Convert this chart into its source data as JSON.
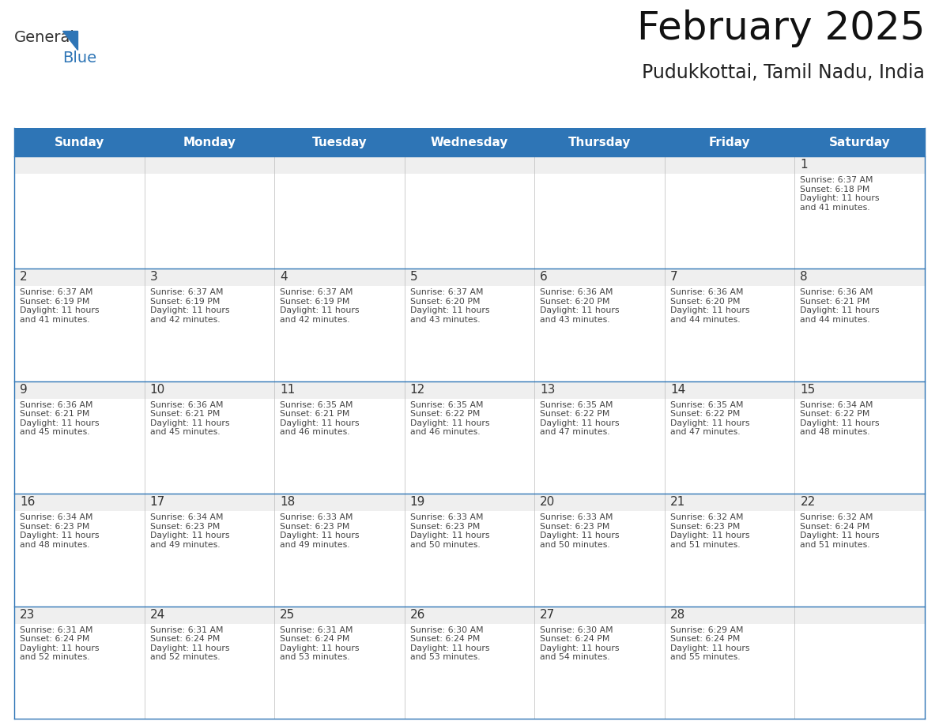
{
  "title": "February 2025",
  "subtitle": "Pudukkottai, Tamil Nadu, India",
  "header_color": "#2E75B6",
  "header_text_color": "#FFFFFF",
  "day_names": [
    "Sunday",
    "Monday",
    "Tuesday",
    "Wednesday",
    "Thursday",
    "Friday",
    "Saturday"
  ],
  "cell_top_bg": "#EFEFEF",
  "cell_bg_color": "#FFFFFF",
  "day_number_color": "#333333",
  "text_color": "#444444",
  "line_color": "#2E75B6",
  "bg_color": "#FFFFFF",
  "weeks": [
    [
      {
        "day": null,
        "sunrise": null,
        "sunset": null,
        "daylight": null
      },
      {
        "day": null,
        "sunrise": null,
        "sunset": null,
        "daylight": null
      },
      {
        "day": null,
        "sunrise": null,
        "sunset": null,
        "daylight": null
      },
      {
        "day": null,
        "sunrise": null,
        "sunset": null,
        "daylight": null
      },
      {
        "day": null,
        "sunrise": null,
        "sunset": null,
        "daylight": null
      },
      {
        "day": null,
        "sunrise": null,
        "sunset": null,
        "daylight": null
      },
      {
        "day": 1,
        "sunrise": "6:37 AM",
        "sunset": "6:18 PM",
        "daylight": "11 hours and 41 minutes."
      }
    ],
    [
      {
        "day": 2,
        "sunrise": "6:37 AM",
        "sunset": "6:19 PM",
        "daylight": "11 hours and 41 minutes."
      },
      {
        "day": 3,
        "sunrise": "6:37 AM",
        "sunset": "6:19 PM",
        "daylight": "11 hours and 42 minutes."
      },
      {
        "day": 4,
        "sunrise": "6:37 AM",
        "sunset": "6:19 PM",
        "daylight": "11 hours and 42 minutes."
      },
      {
        "day": 5,
        "sunrise": "6:37 AM",
        "sunset": "6:20 PM",
        "daylight": "11 hours and 43 minutes."
      },
      {
        "day": 6,
        "sunrise": "6:36 AM",
        "sunset": "6:20 PM",
        "daylight": "11 hours and 43 minutes."
      },
      {
        "day": 7,
        "sunrise": "6:36 AM",
        "sunset": "6:20 PM",
        "daylight": "11 hours and 44 minutes."
      },
      {
        "day": 8,
        "sunrise": "6:36 AM",
        "sunset": "6:21 PM",
        "daylight": "11 hours and 44 minutes."
      }
    ],
    [
      {
        "day": 9,
        "sunrise": "6:36 AM",
        "sunset": "6:21 PM",
        "daylight": "11 hours and 45 minutes."
      },
      {
        "day": 10,
        "sunrise": "6:36 AM",
        "sunset": "6:21 PM",
        "daylight": "11 hours and 45 minutes."
      },
      {
        "day": 11,
        "sunrise": "6:35 AM",
        "sunset": "6:21 PM",
        "daylight": "11 hours and 46 minutes."
      },
      {
        "day": 12,
        "sunrise": "6:35 AM",
        "sunset": "6:22 PM",
        "daylight": "11 hours and 46 minutes."
      },
      {
        "day": 13,
        "sunrise": "6:35 AM",
        "sunset": "6:22 PM",
        "daylight": "11 hours and 47 minutes."
      },
      {
        "day": 14,
        "sunrise": "6:35 AM",
        "sunset": "6:22 PM",
        "daylight": "11 hours and 47 minutes."
      },
      {
        "day": 15,
        "sunrise": "6:34 AM",
        "sunset": "6:22 PM",
        "daylight": "11 hours and 48 minutes."
      }
    ],
    [
      {
        "day": 16,
        "sunrise": "6:34 AM",
        "sunset": "6:23 PM",
        "daylight": "11 hours and 48 minutes."
      },
      {
        "day": 17,
        "sunrise": "6:34 AM",
        "sunset": "6:23 PM",
        "daylight": "11 hours and 49 minutes."
      },
      {
        "day": 18,
        "sunrise": "6:33 AM",
        "sunset": "6:23 PM",
        "daylight": "11 hours and 49 minutes."
      },
      {
        "day": 19,
        "sunrise": "6:33 AM",
        "sunset": "6:23 PM",
        "daylight": "11 hours and 50 minutes."
      },
      {
        "day": 20,
        "sunrise": "6:33 AM",
        "sunset": "6:23 PM",
        "daylight": "11 hours and 50 minutes."
      },
      {
        "day": 21,
        "sunrise": "6:32 AM",
        "sunset": "6:23 PM",
        "daylight": "11 hours and 51 minutes."
      },
      {
        "day": 22,
        "sunrise": "6:32 AM",
        "sunset": "6:24 PM",
        "daylight": "11 hours and 51 minutes."
      }
    ],
    [
      {
        "day": 23,
        "sunrise": "6:31 AM",
        "sunset": "6:24 PM",
        "daylight": "11 hours and 52 minutes."
      },
      {
        "day": 24,
        "sunrise": "6:31 AM",
        "sunset": "6:24 PM",
        "daylight": "11 hours and 52 minutes."
      },
      {
        "day": 25,
        "sunrise": "6:31 AM",
        "sunset": "6:24 PM",
        "daylight": "11 hours and 53 minutes."
      },
      {
        "day": 26,
        "sunrise": "6:30 AM",
        "sunset": "6:24 PM",
        "daylight": "11 hours and 53 minutes."
      },
      {
        "day": 27,
        "sunrise": "6:30 AM",
        "sunset": "6:24 PM",
        "daylight": "11 hours and 54 minutes."
      },
      {
        "day": 28,
        "sunrise": "6:29 AM",
        "sunset": "6:24 PM",
        "daylight": "11 hours and 55 minutes."
      },
      {
        "day": null,
        "sunrise": null,
        "sunset": null,
        "daylight": null
      }
    ]
  ]
}
